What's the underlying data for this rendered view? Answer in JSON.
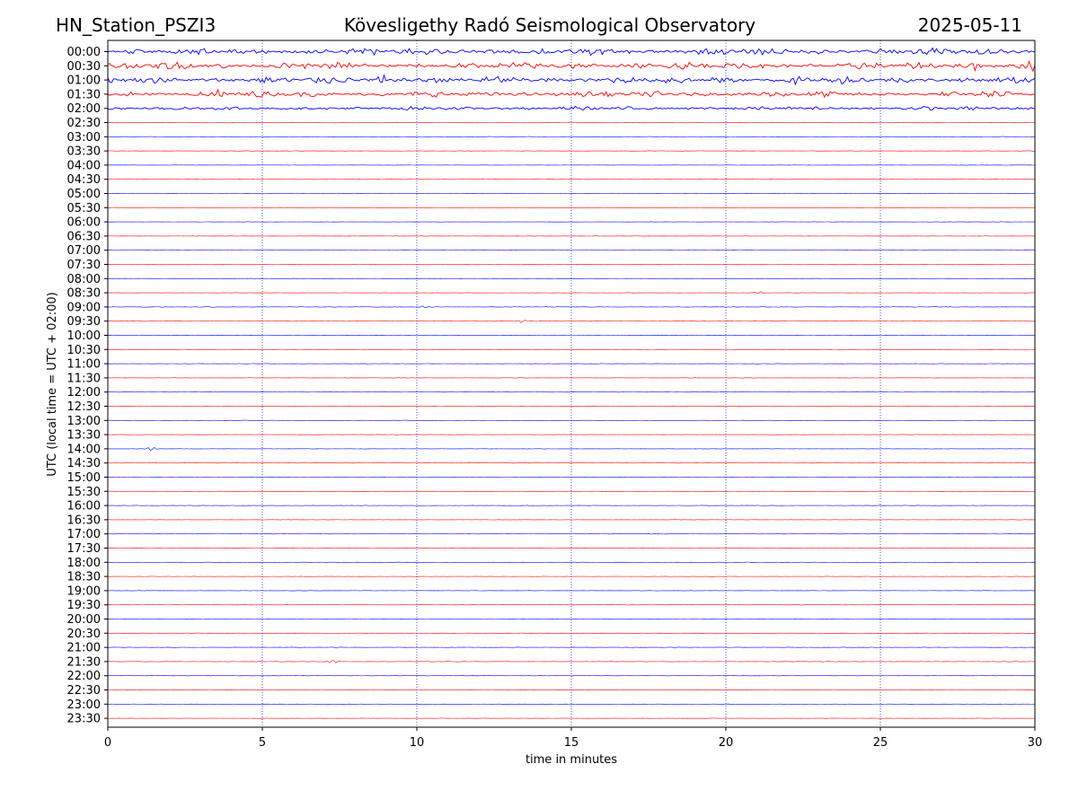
{
  "header": {
    "station": "HN_Station_PSZI3",
    "observatory": "Kövesligethy Radó Seismological Observatory",
    "date": "2025-05-11"
  },
  "chart_data": {
    "type": "line",
    "title": "Kövesligethy Radó Seismological Observatory",
    "xlabel": "time in minutes",
    "ylabel": "UTC (local time = UTC + 02:00)",
    "xlim": [
      0,
      30
    ],
    "xticks": [
      0,
      5,
      10,
      15,
      20,
      25,
      30
    ],
    "grid": "vertical dotted at x ticks",
    "row_labels": [
      "00:00",
      "00:30",
      "01:00",
      "01:30",
      "02:00",
      "02:30",
      "03:00",
      "03:30",
      "04:00",
      "04:30",
      "05:00",
      "05:30",
      "06:00",
      "06:30",
      "07:00",
      "07:30",
      "08:00",
      "08:30",
      "09:00",
      "09:30",
      "10:00",
      "10:30",
      "11:00",
      "11:30",
      "12:00",
      "12:30",
      "13:00",
      "13:30",
      "14:00",
      "14:30",
      "15:00",
      "15:30",
      "16:00",
      "16:30",
      "17:00",
      "17:30",
      "18:00",
      "18:30",
      "19:00",
      "19:30",
      "20:00",
      "20:30",
      "21:00",
      "21:30",
      "22:00",
      "22:30",
      "23:00",
      "23:30"
    ],
    "series_colors": [
      "#0000ff",
      "#ff0000"
    ],
    "activity_levels": [
      1.0,
      1.0,
      1.0,
      0.85,
      0.55,
      0.12,
      0.08,
      0.07,
      0.05,
      0.05,
      0.05,
      0.05,
      0.05,
      0.05,
      0.05,
      0.05,
      0.06,
      0.06,
      0.1,
      0.08,
      0.05,
      0.05,
      0.06,
      0.05,
      0.05,
      0.05,
      0.06,
      0.05,
      0.05,
      0.05,
      0.05,
      0.05,
      0.06,
      0.05,
      0.05,
      0.05,
      0.05,
      0.05,
      0.05,
      0.05,
      0.05,
      0.06,
      0.07,
      0.08,
      0.06,
      0.05,
      0.05,
      0.05
    ],
    "events": [
      {
        "row": 28,
        "x": 1.4,
        "amp": 2.2
      },
      {
        "row": 19,
        "x": 13.4,
        "amp": 1.6
      },
      {
        "row": 17,
        "x": 21.1,
        "amp": 1.3
      },
      {
        "row": 18,
        "x": 10.3,
        "amp": 1.5
      },
      {
        "row": 43,
        "x": 7.3,
        "amp": 2.0
      },
      {
        "row": 1,
        "x": 28.1,
        "amp": 6
      },
      {
        "row": 1,
        "x": 29.8,
        "amp": 7
      },
      {
        "row": 2,
        "x": 22.3,
        "amp": 6
      },
      {
        "row": 2,
        "x": 8.9,
        "amp": 6
      },
      {
        "row": 3,
        "x": 3.6,
        "amp": 5
      }
    ]
  }
}
